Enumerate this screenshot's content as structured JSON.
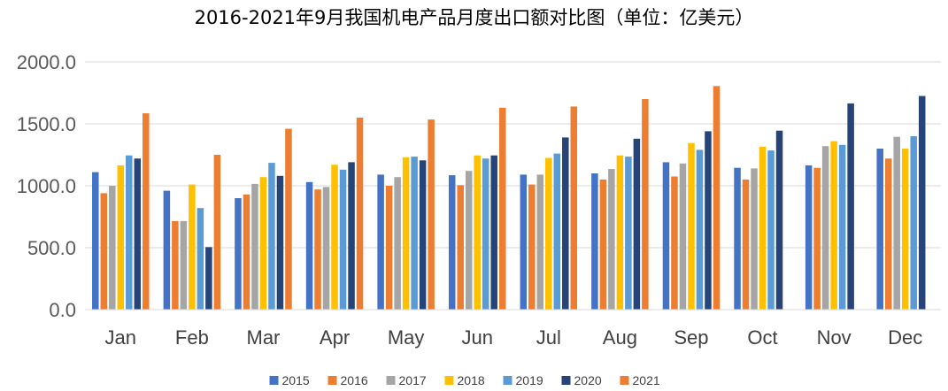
{
  "chart_data": {
    "type": "bar",
    "title": "2016-2021年9月我国机电产品月度出口额对比图（单位：亿美元）",
    "xlabel": "",
    "ylabel": "",
    "ylim": [
      0,
      2000
    ],
    "yticks": [
      "0.0",
      "500.0",
      "1000.0",
      "1500.0",
      "2000.0"
    ],
    "grid": true,
    "legend_position": "bottom",
    "categories": [
      "Jan",
      "Feb",
      "Mar",
      "Apr",
      "May",
      "Jun",
      "Jul",
      "Aug",
      "Sep",
      "Oct",
      "Nov",
      "Dec"
    ],
    "series": [
      {
        "name": "2015",
        "color": "#4472C4",
        "values": [
          1110,
          960,
          900,
          1030,
          1090,
          1085,
          1090,
          1100,
          1190,
          1145,
          1165,
          1300
        ]
      },
      {
        "name": "2016",
        "color": "#ED7D31",
        "values": [
          940,
          715,
          930,
          970,
          1000,
          1005,
          1010,
          1050,
          1075,
          1050,
          1145,
          1220
        ]
      },
      {
        "name": "2017",
        "color": "#A5A5A5",
        "values": [
          1000,
          715,
          1015,
          990,
          1070,
          1120,
          1090,
          1135,
          1180,
          1140,
          1320,
          1395
        ]
      },
      {
        "name": "2018",
        "color": "#FFC000",
        "values": [
          1165,
          1010,
          1070,
          1170,
          1230,
          1245,
          1225,
          1245,
          1345,
          1315,
          1360,
          1300
        ]
      },
      {
        "name": "2019",
        "color": "#5B9BD5",
        "values": [
          1245,
          820,
          1185,
          1130,
          1235,
          1220,
          1260,
          1235,
          1290,
          1285,
          1330,
          1400
        ]
      },
      {
        "name": "2020",
        "color": "#264478",
        "values": [
          1220,
          505,
          1080,
          1190,
          1205,
          1245,
          1390,
          1380,
          1440,
          1445,
          1665,
          1725
        ]
      },
      {
        "name": "2021",
        "color": "#ED7D31",
        "values": [
          1585,
          1250,
          1460,
          1550,
          1535,
          1630,
          1640,
          1700,
          1805,
          null,
          null,
          null
        ]
      }
    ]
  }
}
